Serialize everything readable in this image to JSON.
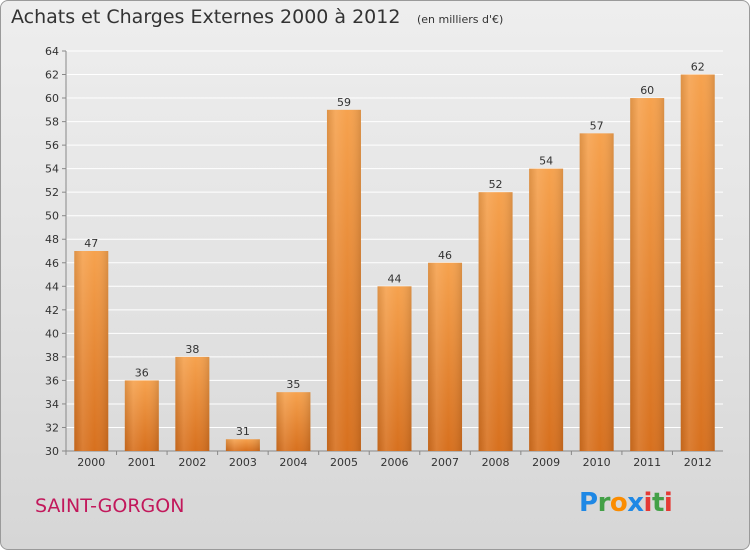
{
  "title": "Achats et Charges Externes 2000 à 2012",
  "subtitle": "(en milliers d'€)",
  "town": "SAINT-GORGON",
  "logo": {
    "letters": [
      {
        "ch": "P",
        "color": "#1e88e5"
      },
      {
        "ch": "r",
        "color": "#43a047"
      },
      {
        "ch": "o",
        "color": "#fb8c00"
      },
      {
        "ch": "x",
        "color": "#1e88e5"
      },
      {
        "ch": "i",
        "color": "#e53935"
      },
      {
        "ch": "t",
        "color": "#43a047"
      },
      {
        "ch": "i",
        "color": "#e53935"
      }
    ]
  },
  "colors": {
    "bar_top": "#f6a24e",
    "bar_bottom": "#d7701e",
    "grid": "#ffffff"
  },
  "chart_data": {
    "type": "bar",
    "categories": [
      "2000",
      "2001",
      "2002",
      "2003",
      "2004",
      "2005",
      "2006",
      "2007",
      "2008",
      "2009",
      "2010",
      "2011",
      "2012"
    ],
    "values": [
      47,
      36,
      38,
      31,
      35,
      59,
      44,
      46,
      52,
      54,
      57,
      60,
      62
    ],
    "ylim": [
      30,
      64
    ],
    "yticks": [
      30,
      32,
      34,
      36,
      38,
      40,
      42,
      44,
      46,
      48,
      50,
      52,
      54,
      56,
      58,
      60,
      62,
      64
    ],
    "grid": true,
    "value_labels": true
  }
}
